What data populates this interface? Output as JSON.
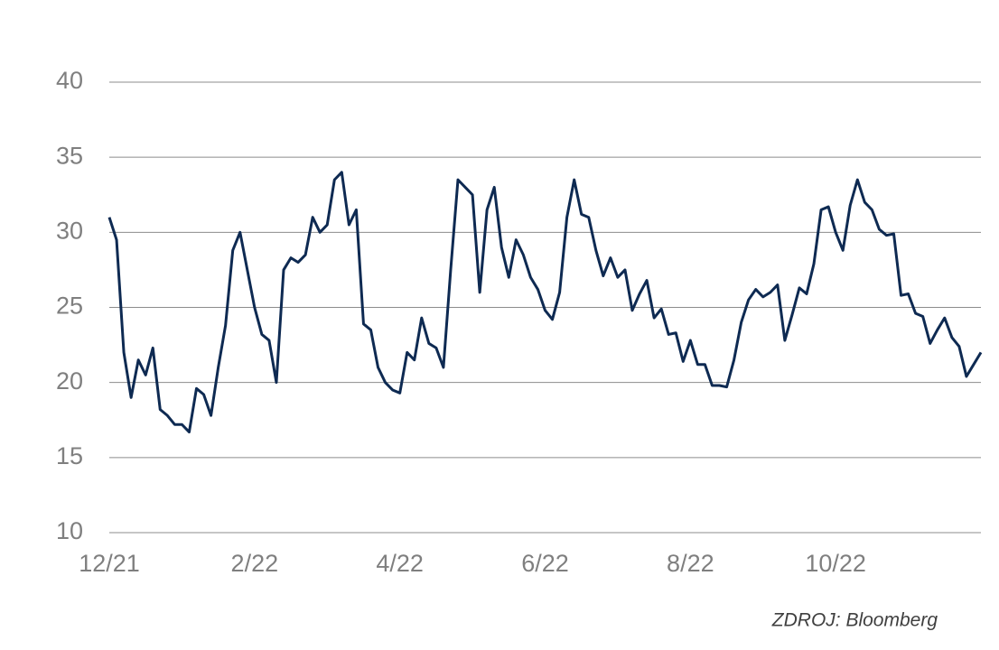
{
  "chart_data": {
    "type": "line",
    "source": "ZDROJ: Bloomberg",
    "categories": [
      "12/21",
      null,
      null,
      null,
      null,
      null,
      null,
      null,
      null,
      null,
      null,
      null,
      null,
      null,
      null,
      null,
      null,
      null,
      null,
      null,
      "2/22",
      null,
      null,
      null,
      null,
      null,
      null,
      null,
      null,
      null,
      null,
      null,
      null,
      null,
      null,
      null,
      null,
      null,
      null,
      null,
      "4/22",
      null,
      null,
      null,
      null,
      null,
      null,
      null,
      null,
      null,
      null,
      null,
      null,
      null,
      null,
      null,
      null,
      null,
      null,
      null,
      "6/22",
      null,
      null,
      null,
      null,
      null,
      null,
      null,
      null,
      null,
      null,
      null,
      null,
      null,
      null,
      null,
      null,
      null,
      null,
      null,
      "8/22",
      null,
      null,
      null,
      null,
      null,
      null,
      null,
      null,
      null,
      null,
      null,
      null,
      null,
      null,
      null,
      null,
      null,
      null,
      null,
      "10/22",
      null,
      null,
      null,
      null,
      null,
      null,
      null,
      null,
      null,
      null,
      null,
      null,
      null,
      null,
      null,
      null,
      null,
      null,
      null,
      null
    ],
    "series": [
      {
        "color": "#0e2a52",
        "values": [
          31,
          29.5,
          22,
          19,
          21.5,
          20.5,
          22.3,
          18.2,
          17.8,
          17.2,
          17.2,
          16.7,
          19.6,
          19.2,
          17.8,
          21,
          23.8,
          28.8,
          30,
          27.5,
          25,
          23.2,
          22.8,
          20,
          27.5,
          28.3,
          28,
          28.5,
          31,
          30,
          30.5,
          33.5,
          34,
          30.5,
          31.5,
          23.9,
          23.5,
          21,
          20,
          19.5,
          19.3,
          22,
          21.5,
          24.3,
          22.6,
          22.3,
          21,
          27.5,
          33.5,
          33,
          32.5,
          26,
          31.5,
          33,
          29,
          27,
          29.5,
          28.5,
          27,
          26.2,
          24.8,
          24.2,
          26,
          31,
          33.5,
          31.2,
          31,
          28.8,
          27.1,
          28.3,
          27,
          27.5,
          24.8,
          25.9,
          26.8,
          24.3,
          24.9,
          23.2,
          23.3,
          21.4,
          22.8,
          21.2,
          21.2,
          19.8,
          19.8,
          19.7,
          21.5,
          24,
          25.5,
          26.2,
          25.7,
          26,
          26.5,
          22.8,
          24.5,
          26.3,
          25.9,
          27.9,
          31.5,
          31.7,
          30,
          28.8,
          31.8,
          33.5,
          32,
          31.5,
          30.2,
          29.8,
          29.9,
          25.8,
          25.9,
          24.6,
          24.4,
          22.6,
          23.5,
          24.3,
          23,
          22.4,
          20.4,
          21.2,
          22
        ]
      }
    ],
    "ylim": [
      10,
      40
    ],
    "yticks": [
      10,
      15,
      20,
      25,
      30,
      35,
      40
    ],
    "grid": true
  }
}
